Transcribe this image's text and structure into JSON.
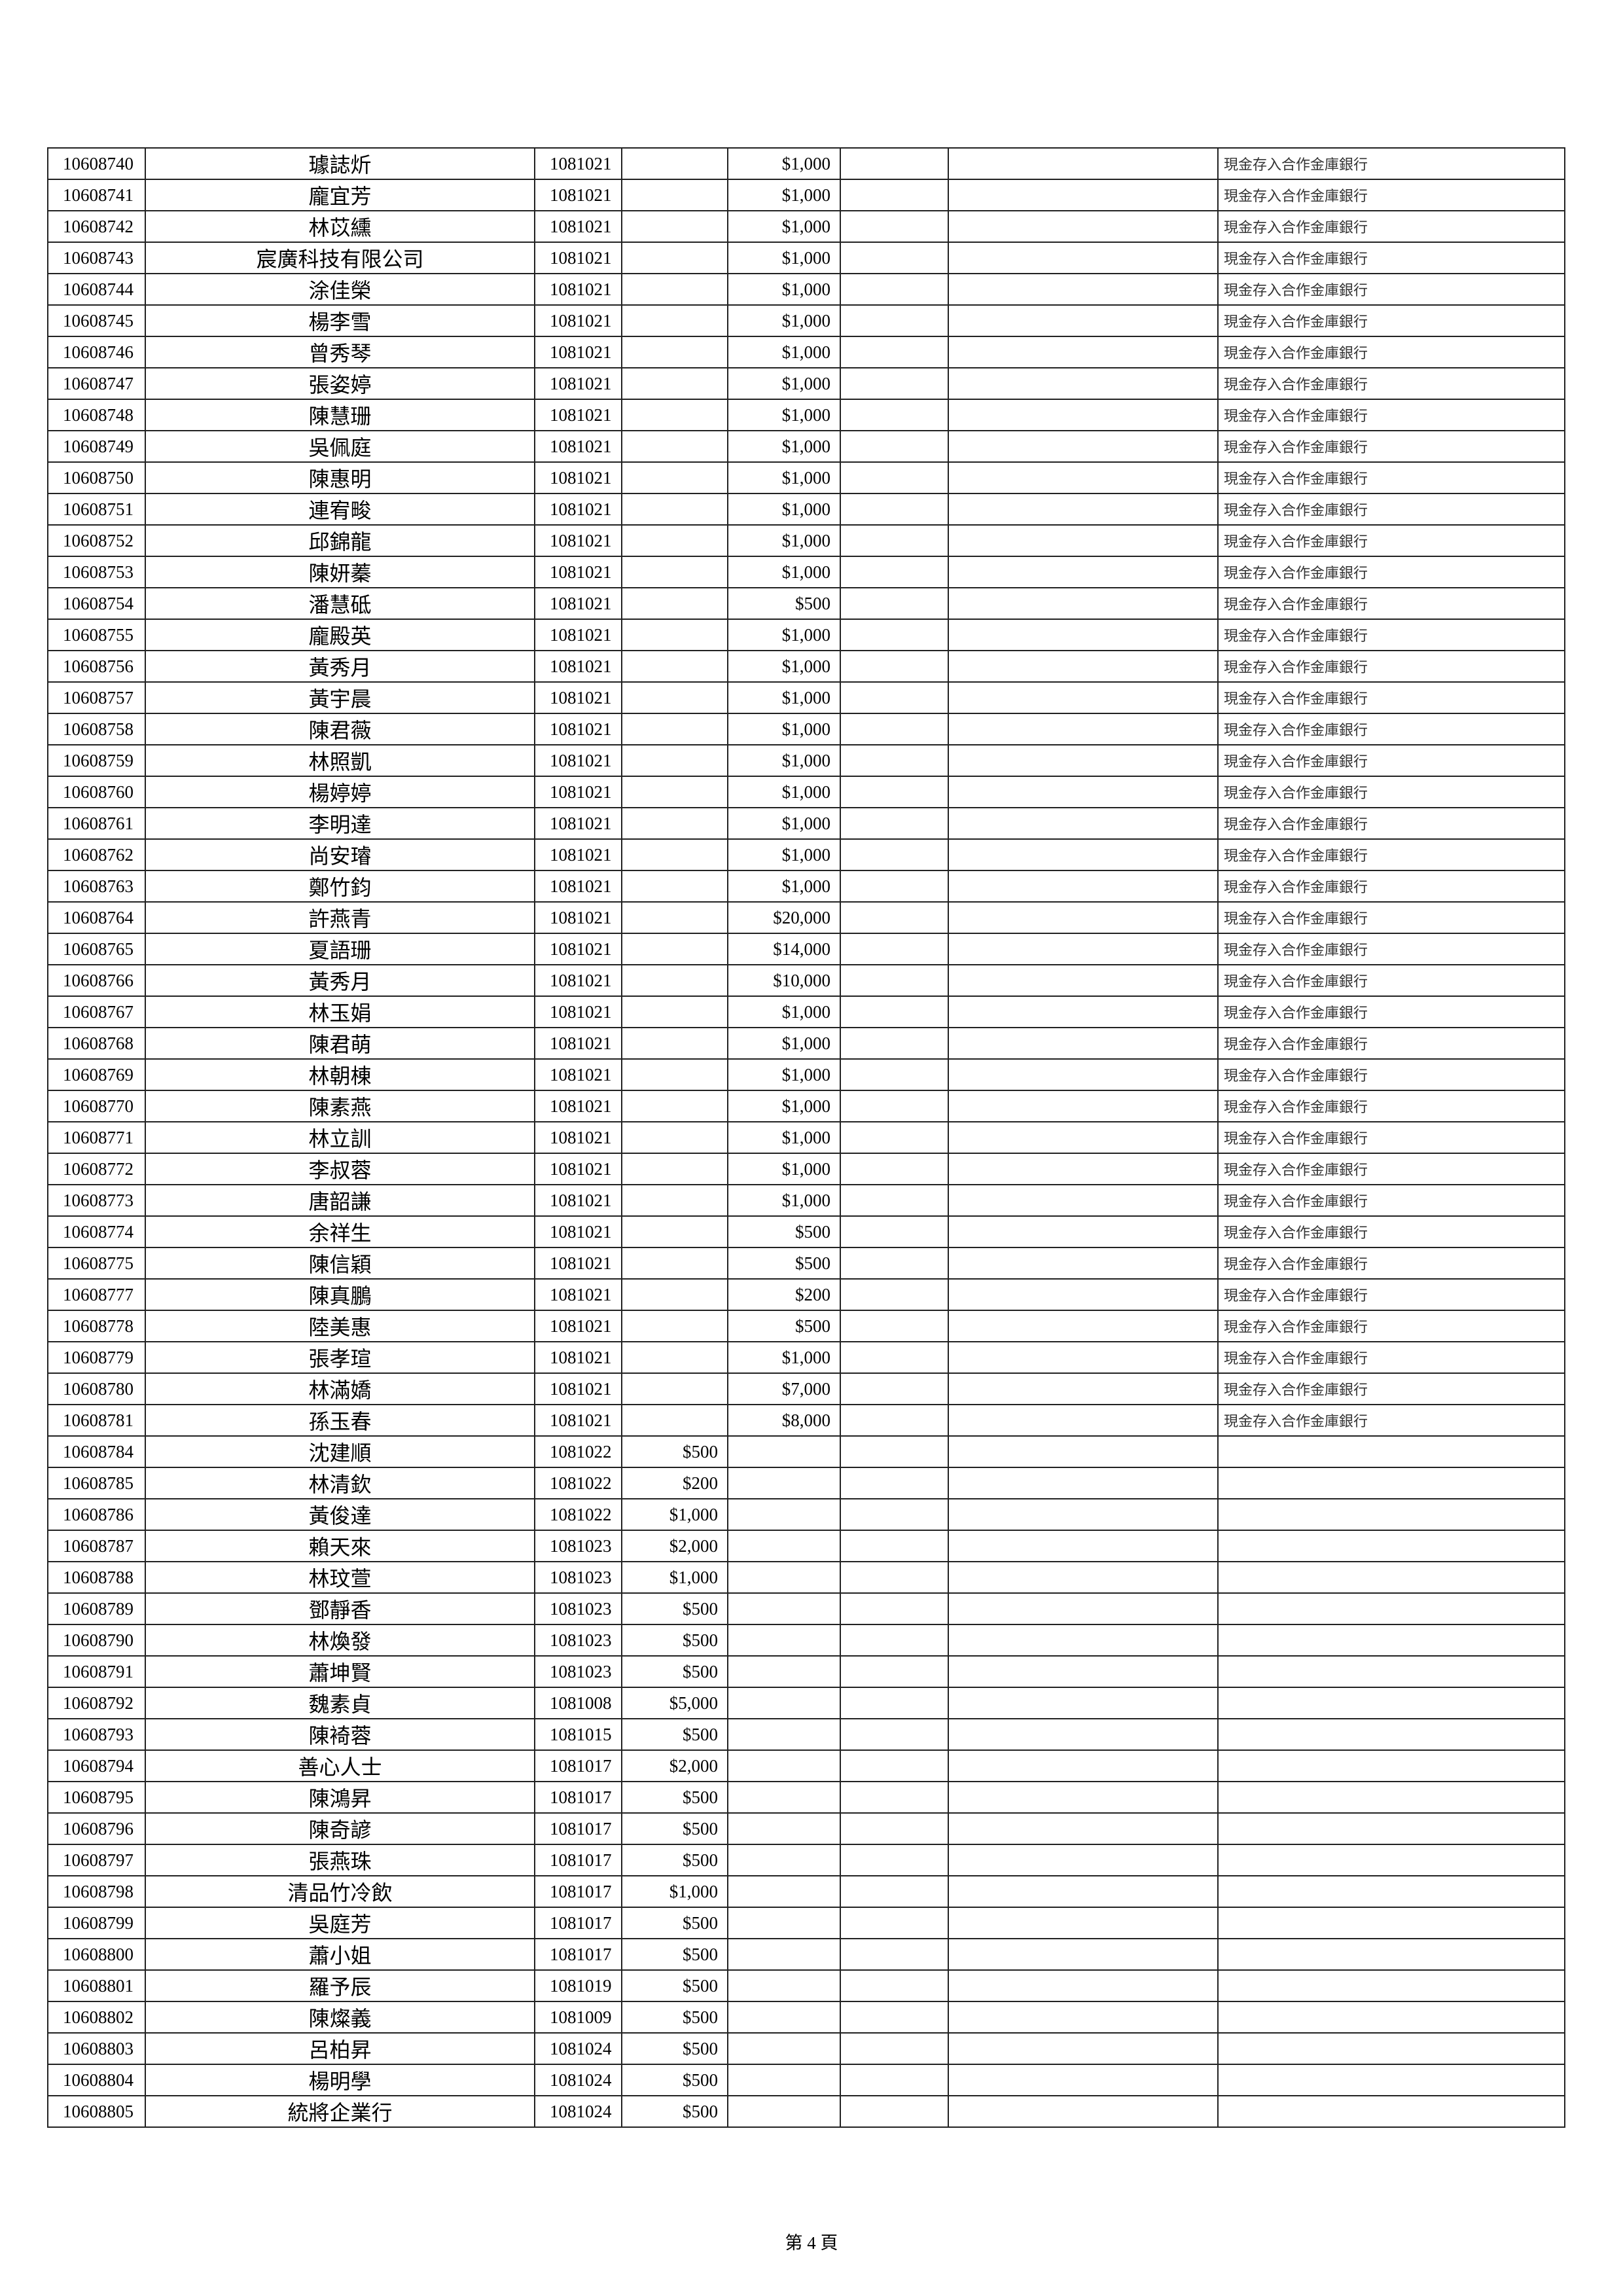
{
  "rows": [
    [
      "10608740",
      "璩誌炘",
      "1081021",
      "",
      "$1,000",
      "現金存入合作金庫銀行"
    ],
    [
      "10608741",
      "龐宜芳",
      "1081021",
      "",
      "$1,000",
      "現金存入合作金庫銀行"
    ],
    [
      "10608742",
      "林苡纁",
      "1081021",
      "",
      "$1,000",
      "現金存入合作金庫銀行"
    ],
    [
      "10608743",
      "宸廣科技有限公司",
      "1081021",
      "",
      "$1,000",
      "現金存入合作金庫銀行"
    ],
    [
      "10608744",
      "涂佳榮",
      "1081021",
      "",
      "$1,000",
      "現金存入合作金庫銀行"
    ],
    [
      "10608745",
      "楊李雪",
      "1081021",
      "",
      "$1,000",
      "現金存入合作金庫銀行"
    ],
    [
      "10608746",
      "曾秀琴",
      "1081021",
      "",
      "$1,000",
      "現金存入合作金庫銀行"
    ],
    [
      "10608747",
      "張姿婷",
      "1081021",
      "",
      "$1,000",
      "現金存入合作金庫銀行"
    ],
    [
      "10608748",
      "陳慧珊",
      "1081021",
      "",
      "$1,000",
      "現金存入合作金庫銀行"
    ],
    [
      "10608749",
      "吳佩庭",
      "1081021",
      "",
      "$1,000",
      "現金存入合作金庫銀行"
    ],
    [
      "10608750",
      "陳惠明",
      "1081021",
      "",
      "$1,000",
      "現金存入合作金庫銀行"
    ],
    [
      "10608751",
      "連宥畯",
      "1081021",
      "",
      "$1,000",
      "現金存入合作金庫銀行"
    ],
    [
      "10608752",
      "邱錦龍",
      "1081021",
      "",
      "$1,000",
      "現金存入合作金庫銀行"
    ],
    [
      "10608753",
      "陳妍蓁",
      "1081021",
      "",
      "$1,000",
      "現金存入合作金庫銀行"
    ],
    [
      "10608754",
      "潘慧砥",
      "1081021",
      "",
      "$500",
      "現金存入合作金庫銀行"
    ],
    [
      "10608755",
      "龐殿英",
      "1081021",
      "",
      "$1,000",
      "現金存入合作金庫銀行"
    ],
    [
      "10608756",
      "黃秀月",
      "1081021",
      "",
      "$1,000",
      "現金存入合作金庫銀行"
    ],
    [
      "10608757",
      "黃宇晨",
      "1081021",
      "",
      "$1,000",
      "現金存入合作金庫銀行"
    ],
    [
      "10608758",
      "陳君薇",
      "1081021",
      "",
      "$1,000",
      "現金存入合作金庫銀行"
    ],
    [
      "10608759",
      "林照凱",
      "1081021",
      "",
      "$1,000",
      "現金存入合作金庫銀行"
    ],
    [
      "10608760",
      "楊婷婷",
      "1081021",
      "",
      "$1,000",
      "現金存入合作金庫銀行"
    ],
    [
      "10608761",
      "李明達",
      "1081021",
      "",
      "$1,000",
      "現金存入合作金庫銀行"
    ],
    [
      "10608762",
      "尚安璿",
      "1081021",
      "",
      "$1,000",
      "現金存入合作金庫銀行"
    ],
    [
      "10608763",
      "鄭竹鈞",
      "1081021",
      "",
      "$1,000",
      "現金存入合作金庫銀行"
    ],
    [
      "10608764",
      "許燕青",
      "1081021",
      "",
      "$20,000",
      "現金存入合作金庫銀行"
    ],
    [
      "10608765",
      "夏語珊",
      "1081021",
      "",
      "$14,000",
      "現金存入合作金庫銀行"
    ],
    [
      "10608766",
      "黃秀月",
      "1081021",
      "",
      "$10,000",
      "現金存入合作金庫銀行"
    ],
    [
      "10608767",
      "林玉娟",
      "1081021",
      "",
      "$1,000",
      "現金存入合作金庫銀行"
    ],
    [
      "10608768",
      "陳君萌",
      "1081021",
      "",
      "$1,000",
      "現金存入合作金庫銀行"
    ],
    [
      "10608769",
      "林朝棟",
      "1081021",
      "",
      "$1,000",
      "現金存入合作金庫銀行"
    ],
    [
      "10608770",
      "陳素燕",
      "1081021",
      "",
      "$1,000",
      "現金存入合作金庫銀行"
    ],
    [
      "10608771",
      "林立訓",
      "1081021",
      "",
      "$1,000",
      "現金存入合作金庫銀行"
    ],
    [
      "10608772",
      "李叔蓉",
      "1081021",
      "",
      "$1,000",
      "現金存入合作金庫銀行"
    ],
    [
      "10608773",
      "唐韶謙",
      "1081021",
      "",
      "$1,000",
      "現金存入合作金庫銀行"
    ],
    [
      "10608774",
      "余祥生",
      "1081021",
      "",
      "$500",
      "現金存入合作金庫銀行"
    ],
    [
      "10608775",
      "陳信穎",
      "1081021",
      "",
      "$500",
      "現金存入合作金庫銀行"
    ],
    [
      "10608777",
      "陳真鵬",
      "1081021",
      "",
      "$200",
      "現金存入合作金庫銀行"
    ],
    [
      "10608778",
      "陸美惠",
      "1081021",
      "",
      "$500",
      "現金存入合作金庫銀行"
    ],
    [
      "10608779",
      "張孝瑄",
      "1081021",
      "",
      "$1,000",
      "現金存入合作金庫銀行"
    ],
    [
      "10608780",
      "林滿嬌",
      "1081021",
      "",
      "$7,000",
      "現金存入合作金庫銀行"
    ],
    [
      "10608781",
      "孫玉春",
      "1081021",
      "",
      "$8,000",
      "現金存入合作金庫銀行"
    ],
    [
      "10608784",
      "沈建順",
      "1081022",
      "$500",
      "",
      ""
    ],
    [
      "10608785",
      "林清欽",
      "1081022",
      "$200",
      "",
      ""
    ],
    [
      "10608786",
      "黃俊達",
      "1081022",
      "$1,000",
      "",
      ""
    ],
    [
      "10608787",
      "賴天來",
      "1081023",
      "$2,000",
      "",
      ""
    ],
    [
      "10608788",
      "林玟萱",
      "1081023",
      "$1,000",
      "",
      ""
    ],
    [
      "10608789",
      "鄧靜香",
      "1081023",
      "$500",
      "",
      ""
    ],
    [
      "10608790",
      "林煥發",
      "1081023",
      "$500",
      "",
      ""
    ],
    [
      "10608791",
      "蕭坤賢",
      "1081023",
      "$500",
      "",
      ""
    ],
    [
      "10608792",
      "魏素貞",
      "1081008",
      "$5,000",
      "",
      ""
    ],
    [
      "10608793",
      "陳裿蓉",
      "1081015",
      "$500",
      "",
      ""
    ],
    [
      "10608794",
      "善心人士",
      "1081017",
      "$2,000",
      "",
      ""
    ],
    [
      "10608795",
      "陳鴻昇",
      "1081017",
      "$500",
      "",
      ""
    ],
    [
      "10608796",
      "陳奇諺",
      "1081017",
      "$500",
      "",
      ""
    ],
    [
      "10608797",
      "張燕珠",
      "1081017",
      "$500",
      "",
      ""
    ],
    [
      "10608798",
      "清品竹冷飲",
      "1081017",
      "$1,000",
      "",
      ""
    ],
    [
      "10608799",
      "吳庭芳",
      "1081017",
      "$500",
      "",
      ""
    ],
    [
      "10608800",
      "蕭小姐",
      "1081017",
      "$500",
      "",
      ""
    ],
    [
      "10608801",
      "羅予辰",
      "1081019",
      "$500",
      "",
      ""
    ],
    [
      "10608802",
      "陳燦義",
      "1081009",
      "$500",
      "",
      ""
    ],
    [
      "10608803",
      "呂柏昇",
      "1081024",
      "$500",
      "",
      ""
    ],
    [
      "10608804",
      "楊明學",
      "1081024",
      "$500",
      "",
      ""
    ],
    [
      "10608805",
      "統將企業行",
      "1081024",
      "$500",
      "",
      ""
    ]
  ],
  "footer": {
    "page_label": "第 4 頁"
  }
}
